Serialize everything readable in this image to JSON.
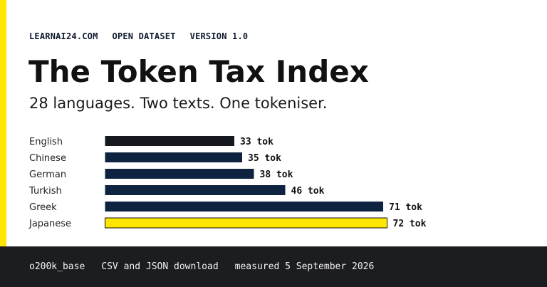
{
  "colors": {
    "accent": "#ffe600",
    "bar_english": "#15181f",
    "bar_default": "#0d2340",
    "bar_highlight": "#ffe600",
    "footer_background": "#1c1d21"
  },
  "header": {
    "items": [
      "LEARNAI24.COM",
      "OPEN DATASET",
      "VERSION 1.0"
    ]
  },
  "title": "The Token Tax Index",
  "subtitle": "28 languages. Two texts. One tokeniser.",
  "chart_data": {
    "type": "bar",
    "orientation": "horizontal",
    "categories": [
      "English",
      "Chinese",
      "German",
      "Turkish",
      "Greek",
      "Japanese"
    ],
    "values": [
      33,
      35,
      38,
      46,
      71,
      72
    ],
    "value_labels": [
      "33 tok",
      "35 tok",
      "38 tok",
      "46 tok",
      "71 tok",
      "72 tok"
    ],
    "highlight": "Japanese",
    "title": "",
    "xlabel": "",
    "ylabel": "",
    "grid": false
  },
  "footer": {
    "items": [
      "o200k_base",
      "CSV and JSON download",
      "measured 5 September 2026"
    ]
  }
}
